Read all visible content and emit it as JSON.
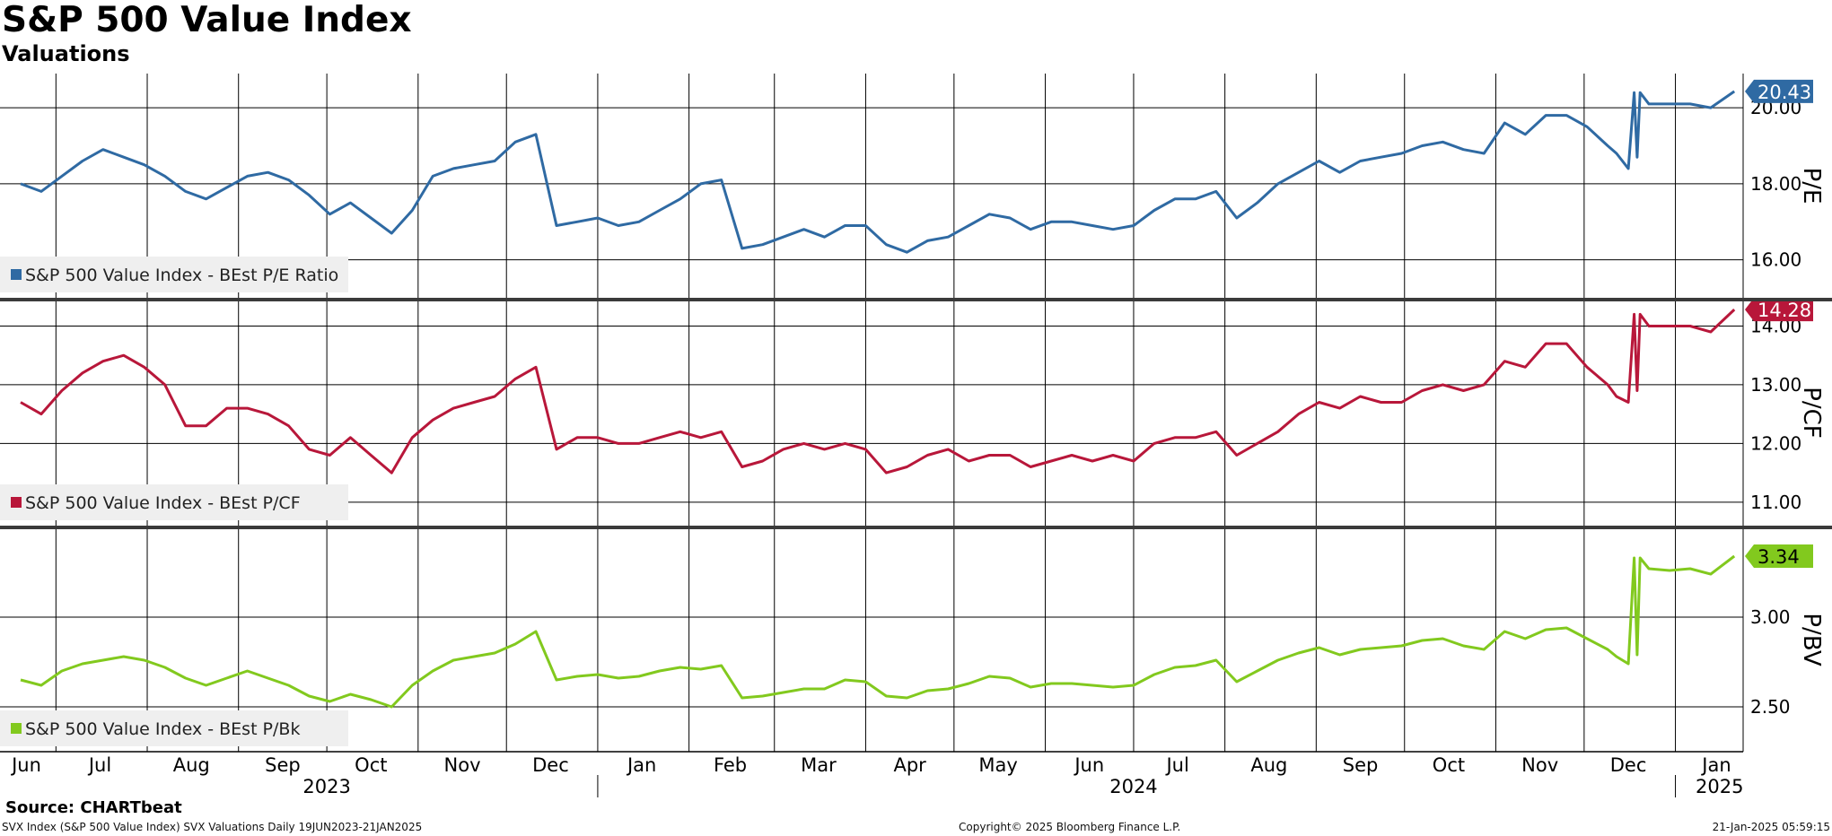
{
  "title": "S&P 500 Value Index",
  "subtitle": "Valuations",
  "source": "Source: CHARTbeat",
  "footer": {
    "left": "SVX Index (S&P 500 Value Index) SVX Valuations  Daily 19JUN2023-21JAN2025",
    "center": "Copyright© 2025 Bloomberg Finance L.P.",
    "right": "21-Jan-2025 05:59:15"
  },
  "chart_data": {
    "type": "line",
    "x_months": [
      "Jun",
      "Jul",
      "Aug",
      "Sep",
      "Oct",
      "Nov",
      "Dec",
      "Jan",
      "Feb",
      "Mar",
      "Apr",
      "May",
      "Jun",
      "Jul",
      "Aug",
      "Sep",
      "Oct",
      "Nov",
      "Dec",
      "Jan"
    ],
    "x_years": [
      "2023",
      "2024",
      "2025"
    ],
    "grid": true,
    "legend": "bottom-left of each panel",
    "panels": [
      {
        "ylabel": "P/E",
        "ylim": [
          15.0,
          20.9
        ],
        "yticks": [
          "16.00",
          "18.00",
          "20.00"
        ],
        "color": "#2f6aa3",
        "series": {
          "name": "S&P 500 Value Index - BEst P/E Ratio",
          "last_label": "20.43",
          "x": [
            "2023-06-19",
            "2023-06-26",
            "2023-07-03",
            "2023-07-10",
            "2023-07-17",
            "2023-07-24",
            "2023-07-31",
            "2023-08-07",
            "2023-08-14",
            "2023-08-21",
            "2023-08-28",
            "2023-09-04",
            "2023-09-11",
            "2023-09-18",
            "2023-09-25",
            "2023-10-02",
            "2023-10-09",
            "2023-10-16",
            "2023-10-23",
            "2023-10-30",
            "2023-11-06",
            "2023-11-13",
            "2023-11-20",
            "2023-11-27",
            "2023-12-04",
            "2023-12-11",
            "2023-12-18",
            "2023-12-25",
            "2024-01-01",
            "2024-01-08",
            "2024-01-15",
            "2024-01-22",
            "2024-01-29",
            "2024-02-05",
            "2024-02-12",
            "2024-02-19",
            "2024-02-26",
            "2024-03-04",
            "2024-03-11",
            "2024-03-18",
            "2024-03-25",
            "2024-04-01",
            "2024-04-08",
            "2024-04-15",
            "2024-04-22",
            "2024-04-29",
            "2024-05-06",
            "2024-05-13",
            "2024-05-20",
            "2024-05-27",
            "2024-06-03",
            "2024-06-10",
            "2024-06-17",
            "2024-06-24",
            "2024-07-01",
            "2024-07-08",
            "2024-07-15",
            "2024-07-22",
            "2024-07-29",
            "2024-08-05",
            "2024-08-12",
            "2024-08-19",
            "2024-08-26",
            "2024-09-02",
            "2024-09-09",
            "2024-09-16",
            "2024-09-23",
            "2024-09-30",
            "2024-10-07",
            "2024-10-14",
            "2024-10-21",
            "2024-10-28",
            "2024-11-04",
            "2024-11-11",
            "2024-11-18",
            "2024-11-25",
            "2024-12-02",
            "2024-12-09",
            "2024-12-12",
            "2024-12-16",
            "2024-12-18",
            "2024-12-19",
            "2024-12-20",
            "2024-12-23",
            "2024-12-30",
            "2025-01-06",
            "2025-01-13",
            "2025-01-21"
          ],
          "values": [
            18.0,
            17.8,
            18.2,
            18.6,
            18.9,
            18.7,
            18.5,
            18.2,
            17.8,
            17.6,
            17.9,
            18.2,
            18.3,
            18.1,
            17.7,
            17.2,
            17.5,
            17.1,
            16.7,
            17.3,
            18.2,
            18.4,
            18.5,
            18.6,
            19.1,
            19.3,
            16.9,
            17.0,
            17.1,
            16.9,
            17.0,
            17.3,
            17.6,
            18.0,
            18.1,
            16.3,
            16.4,
            16.6,
            16.8,
            16.6,
            16.9,
            16.9,
            16.4,
            16.2,
            16.5,
            16.6,
            16.9,
            17.2,
            17.1,
            16.8,
            17.0,
            17.0,
            16.9,
            16.8,
            16.9,
            17.3,
            17.6,
            17.6,
            17.8,
            17.1,
            17.5,
            18.0,
            18.3,
            18.6,
            18.3,
            18.6,
            18.7,
            18.8,
            19.0,
            19.1,
            18.9,
            18.8,
            19.6,
            19.3,
            19.8,
            19.8,
            19.5,
            19.0,
            18.8,
            18.4,
            20.4,
            18.7,
            20.4,
            20.1,
            20.1,
            20.1,
            20.0,
            20.43
          ]
        }
      },
      {
        "ylabel": "P/CF",
        "ylim": [
          10.6,
          14.45
        ],
        "yticks": [
          "11.00",
          "12.00",
          "13.00",
          "14.00"
        ],
        "color": "#b8173a",
        "series": {
          "name": "S&P 500 Value Index - BEst P/CF",
          "last_label": "14.28",
          "x": [
            "2023-06-19",
            "2023-06-26",
            "2023-07-03",
            "2023-07-10",
            "2023-07-17",
            "2023-07-24",
            "2023-07-31",
            "2023-08-07",
            "2023-08-14",
            "2023-08-21",
            "2023-08-28",
            "2023-09-04",
            "2023-09-11",
            "2023-09-18",
            "2023-09-25",
            "2023-10-02",
            "2023-10-09",
            "2023-10-16",
            "2023-10-23",
            "2023-10-30",
            "2023-11-06",
            "2023-11-13",
            "2023-11-20",
            "2023-11-27",
            "2023-12-04",
            "2023-12-11",
            "2023-12-18",
            "2023-12-25",
            "2024-01-01",
            "2024-01-08",
            "2024-01-15",
            "2024-01-22",
            "2024-01-29",
            "2024-02-05",
            "2024-02-12",
            "2024-02-19",
            "2024-02-26",
            "2024-03-04",
            "2024-03-11",
            "2024-03-18",
            "2024-03-25",
            "2024-04-01",
            "2024-04-08",
            "2024-04-15",
            "2024-04-22",
            "2024-04-29",
            "2024-05-06",
            "2024-05-13",
            "2024-05-20",
            "2024-05-27",
            "2024-06-03",
            "2024-06-10",
            "2024-06-17",
            "2024-06-24",
            "2024-07-01",
            "2024-07-08",
            "2024-07-15",
            "2024-07-22",
            "2024-07-29",
            "2024-08-05",
            "2024-08-12",
            "2024-08-19",
            "2024-08-26",
            "2024-09-02",
            "2024-09-09",
            "2024-09-16",
            "2024-09-23",
            "2024-09-30",
            "2024-10-07",
            "2024-10-14",
            "2024-10-21",
            "2024-10-28",
            "2024-11-04",
            "2024-11-11",
            "2024-11-18",
            "2024-11-25",
            "2024-12-02",
            "2024-12-09",
            "2024-12-12",
            "2024-12-16",
            "2024-12-18",
            "2024-12-19",
            "2024-12-20",
            "2024-12-23",
            "2024-12-30",
            "2025-01-06",
            "2025-01-13",
            "2025-01-21"
          ],
          "values": [
            12.7,
            12.5,
            12.9,
            13.2,
            13.4,
            13.5,
            13.3,
            13.0,
            12.3,
            12.3,
            12.6,
            12.6,
            12.5,
            12.3,
            11.9,
            11.8,
            12.1,
            11.8,
            11.5,
            12.1,
            12.4,
            12.6,
            12.7,
            12.8,
            13.1,
            13.3,
            11.9,
            12.1,
            12.1,
            12.0,
            12.0,
            12.1,
            12.2,
            12.1,
            12.2,
            11.6,
            11.7,
            11.9,
            12.0,
            11.9,
            12.0,
            11.9,
            11.5,
            11.6,
            11.8,
            11.9,
            11.7,
            11.8,
            11.8,
            11.6,
            11.7,
            11.8,
            11.7,
            11.8,
            11.7,
            12.0,
            12.1,
            12.1,
            12.2,
            11.8,
            12.0,
            12.2,
            12.5,
            12.7,
            12.6,
            12.8,
            12.7,
            12.7,
            12.9,
            13.0,
            12.9,
            13.0,
            13.4,
            13.3,
            13.7,
            13.7,
            13.3,
            13.0,
            12.8,
            12.7,
            14.2,
            12.9,
            14.2,
            14.0,
            14.0,
            14.0,
            13.9,
            14.28
          ]
        }
      },
      {
        "ylabel": "P/BV",
        "ylim": [
          2.25,
          3.5
        ],
        "yticks": [
          "2.50",
          "3.00"
        ],
        "color": "#82c91e",
        "series": {
          "name": "S&P 500 Value Index - BEst P/Bk",
          "last_label": "3.34",
          "x": [
            "2023-06-19",
            "2023-06-26",
            "2023-07-03",
            "2023-07-10",
            "2023-07-17",
            "2023-07-24",
            "2023-07-31",
            "2023-08-07",
            "2023-08-14",
            "2023-08-21",
            "2023-08-28",
            "2023-09-04",
            "2023-09-11",
            "2023-09-18",
            "2023-09-25",
            "2023-10-02",
            "2023-10-09",
            "2023-10-16",
            "2023-10-23",
            "2023-10-30",
            "2023-11-06",
            "2023-11-13",
            "2023-11-20",
            "2023-11-27",
            "2023-12-04",
            "2023-12-11",
            "2023-12-18",
            "2023-12-25",
            "2024-01-01",
            "2024-01-08",
            "2024-01-15",
            "2024-01-22",
            "2024-01-29",
            "2024-02-05",
            "2024-02-12",
            "2024-02-19",
            "2024-02-26",
            "2024-03-04",
            "2024-03-11",
            "2024-03-18",
            "2024-03-25",
            "2024-04-01",
            "2024-04-08",
            "2024-04-15",
            "2024-04-22",
            "2024-04-29",
            "2024-05-06",
            "2024-05-13",
            "2024-05-20",
            "2024-05-27",
            "2024-06-03",
            "2024-06-10",
            "2024-06-17",
            "2024-06-24",
            "2024-07-01",
            "2024-07-08",
            "2024-07-15",
            "2024-07-22",
            "2024-07-29",
            "2024-08-05",
            "2024-08-12",
            "2024-08-19",
            "2024-08-26",
            "2024-09-02",
            "2024-09-09",
            "2024-09-16",
            "2024-09-23",
            "2024-09-30",
            "2024-10-07",
            "2024-10-14",
            "2024-10-21",
            "2024-10-28",
            "2024-11-04",
            "2024-11-11",
            "2024-11-18",
            "2024-11-25",
            "2024-12-02",
            "2024-12-09",
            "2024-12-12",
            "2024-12-16",
            "2024-12-18",
            "2024-12-19",
            "2024-12-20",
            "2024-12-23",
            "2024-12-30",
            "2025-01-06",
            "2025-01-13",
            "2025-01-21"
          ],
          "values": [
            2.65,
            2.62,
            2.7,
            2.74,
            2.76,
            2.78,
            2.76,
            2.72,
            2.66,
            2.62,
            2.66,
            2.7,
            2.66,
            2.62,
            2.56,
            2.53,
            2.57,
            2.54,
            2.5,
            2.62,
            2.7,
            2.76,
            2.78,
            2.8,
            2.85,
            2.92,
            2.65,
            2.67,
            2.68,
            2.66,
            2.67,
            2.7,
            2.72,
            2.71,
            2.73,
            2.55,
            2.56,
            2.58,
            2.6,
            2.6,
            2.65,
            2.64,
            2.56,
            2.55,
            2.59,
            2.6,
            2.63,
            2.67,
            2.66,
            2.61,
            2.63,
            2.63,
            2.62,
            2.61,
            2.62,
            2.68,
            2.72,
            2.73,
            2.76,
            2.64,
            2.7,
            2.76,
            2.8,
            2.83,
            2.79,
            2.82,
            2.83,
            2.84,
            2.87,
            2.88,
            2.84,
            2.82,
            2.92,
            2.88,
            2.93,
            2.94,
            2.88,
            2.82,
            2.78,
            2.74,
            3.33,
            2.79,
            3.33,
            3.27,
            3.26,
            3.27,
            3.24,
            3.34
          ]
        }
      }
    ]
  }
}
